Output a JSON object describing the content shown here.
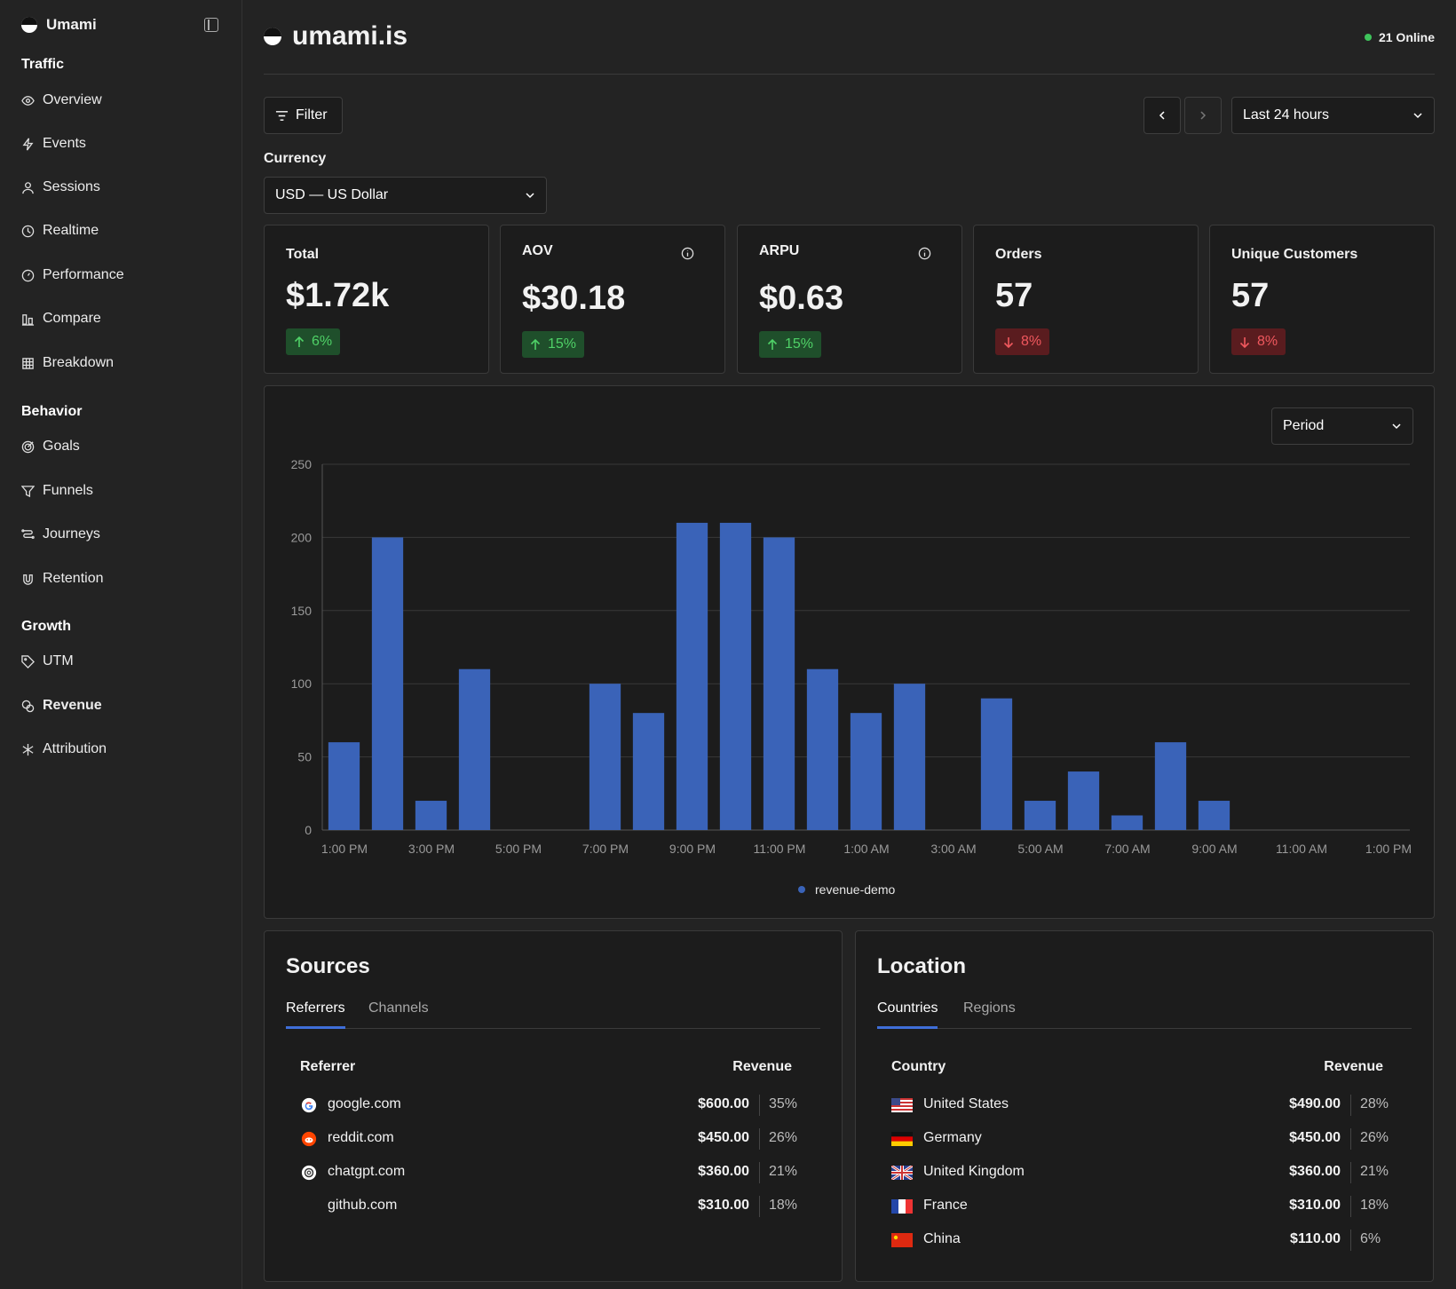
{
  "sidebar": {
    "brand": "Umami",
    "sections": {
      "traffic": "Traffic",
      "behavior": "Behavior",
      "growth": "Growth"
    },
    "items": {
      "overview": "Overview",
      "events": "Events",
      "sessions": "Sessions",
      "realtime": "Realtime",
      "performance": "Performance",
      "compare": "Compare",
      "breakdown": "Breakdown",
      "goals": "Goals",
      "funnels": "Funnels",
      "journeys": "Journeys",
      "retention": "Retention",
      "utm": "UTM",
      "revenue": "Revenue",
      "attribution": "Attribution"
    }
  },
  "header": {
    "site": "umami.is",
    "online": "21 Online"
  },
  "toolbar": {
    "filter": "Filter",
    "date_range": "Last 24 hours"
  },
  "currency": {
    "label": "Currency",
    "value": "USD — US Dollar"
  },
  "metrics": {
    "total": {
      "label": "Total",
      "value": "$1.72k",
      "change": "6%",
      "direction": "up"
    },
    "aov": {
      "label": "AOV",
      "value": "$30.18",
      "change": "15%",
      "direction": "up"
    },
    "arpu": {
      "label": "ARPU",
      "value": "$0.63",
      "change": "15%",
      "direction": "up"
    },
    "orders": {
      "label": "Orders",
      "value": "57",
      "change": "8%",
      "direction": "down"
    },
    "unique": {
      "label": "Unique Customers",
      "value": "57",
      "change": "8%",
      "direction": "down"
    }
  },
  "chart_controls": {
    "period": "Period"
  },
  "chart_data": {
    "type": "bar",
    "series": [
      {
        "name": "revenue-demo",
        "values": [
          60,
          200,
          20,
          110,
          0,
          0,
          100,
          80,
          210,
          210,
          200,
          110,
          80,
          100,
          0,
          90,
          20,
          40,
          10,
          60,
          20,
          0,
          0,
          0,
          0
        ]
      }
    ],
    "ylim": [
      0,
      250
    ],
    "yticks": [
      "0",
      "50",
      "100",
      "150",
      "200",
      "250"
    ],
    "xtick_labels": [
      "1:00 PM",
      "3:00 PM",
      "5:00 PM",
      "7:00 PM",
      "9:00 PM",
      "11:00 PM",
      "1:00 AM",
      "3:00 AM",
      "5:00 AM",
      "7:00 AM",
      "9:00 AM",
      "11:00 AM",
      "1:00 PM"
    ],
    "grid": true,
    "legend": "bottom-center",
    "color": "#3a63b8"
  },
  "sources": {
    "title": "Sources",
    "tabs": [
      "Referrers",
      "Channels"
    ],
    "col_name": "Referrer",
    "col_value": "Revenue",
    "rows": [
      {
        "name": "google.com",
        "revenue": "$600.00",
        "pct": "35%"
      },
      {
        "name": "reddit.com",
        "revenue": "$450.00",
        "pct": "26%"
      },
      {
        "name": "chatgpt.com",
        "revenue": "$360.00",
        "pct": "21%"
      },
      {
        "name": "github.com",
        "revenue": "$310.00",
        "pct": "18%"
      }
    ]
  },
  "location": {
    "title": "Location",
    "tabs": [
      "Countries",
      "Regions"
    ],
    "col_name": "Country",
    "col_value": "Revenue",
    "rows": [
      {
        "name": "United States",
        "revenue": "$490.00",
        "pct": "28%"
      },
      {
        "name": "Germany",
        "revenue": "$450.00",
        "pct": "26%"
      },
      {
        "name": "United Kingdom",
        "revenue": "$360.00",
        "pct": "21%"
      },
      {
        "name": "France",
        "revenue": "$310.00",
        "pct": "18%"
      },
      {
        "name": "China",
        "revenue": "$110.00",
        "pct": "6%"
      }
    ]
  }
}
